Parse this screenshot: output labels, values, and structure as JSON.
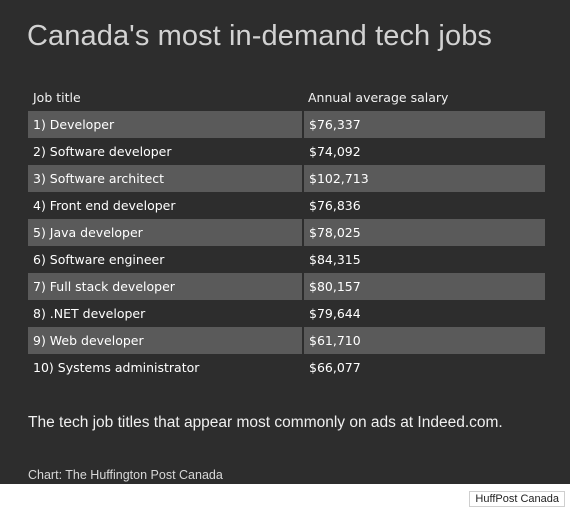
{
  "chart_data": {
    "type": "table",
    "title": "Canada's most in-demand tech jobs",
    "columns": [
      "Job title",
      "Annual average salary"
    ],
    "rows": [
      {
        "job": "1) Developer",
        "salary": "$76,337"
      },
      {
        "job": "2) Software developer",
        "salary": "$74,092"
      },
      {
        "job": "3) Software architect",
        "salary": "$102,713"
      },
      {
        "job": "4) Front end developer",
        "salary": "$76,836"
      },
      {
        "job": "5) Java developer",
        "salary": "$78,025"
      },
      {
        "job": "6) Software engineer",
        "salary": "$84,315"
      },
      {
        "job": "7) Full stack developer",
        "salary": "$80,157"
      },
      {
        "job": "8) .NET developer",
        "salary": "$79,644"
      },
      {
        "job": "9) Web developer",
        "salary": "$61,710"
      },
      {
        "job": "10) Systems administrator",
        "salary": "$66,077"
      }
    ],
    "subtitle": "The tech job titles that appear most commonly on ads at Indeed.com.",
    "source": "Chart: The Huffington Post Canada"
  },
  "watermark": "HuffPost Canada",
  "colors": {
    "background": "#2d2d2d",
    "row_shade": "#5a5a5a",
    "text": "#ffffff"
  }
}
